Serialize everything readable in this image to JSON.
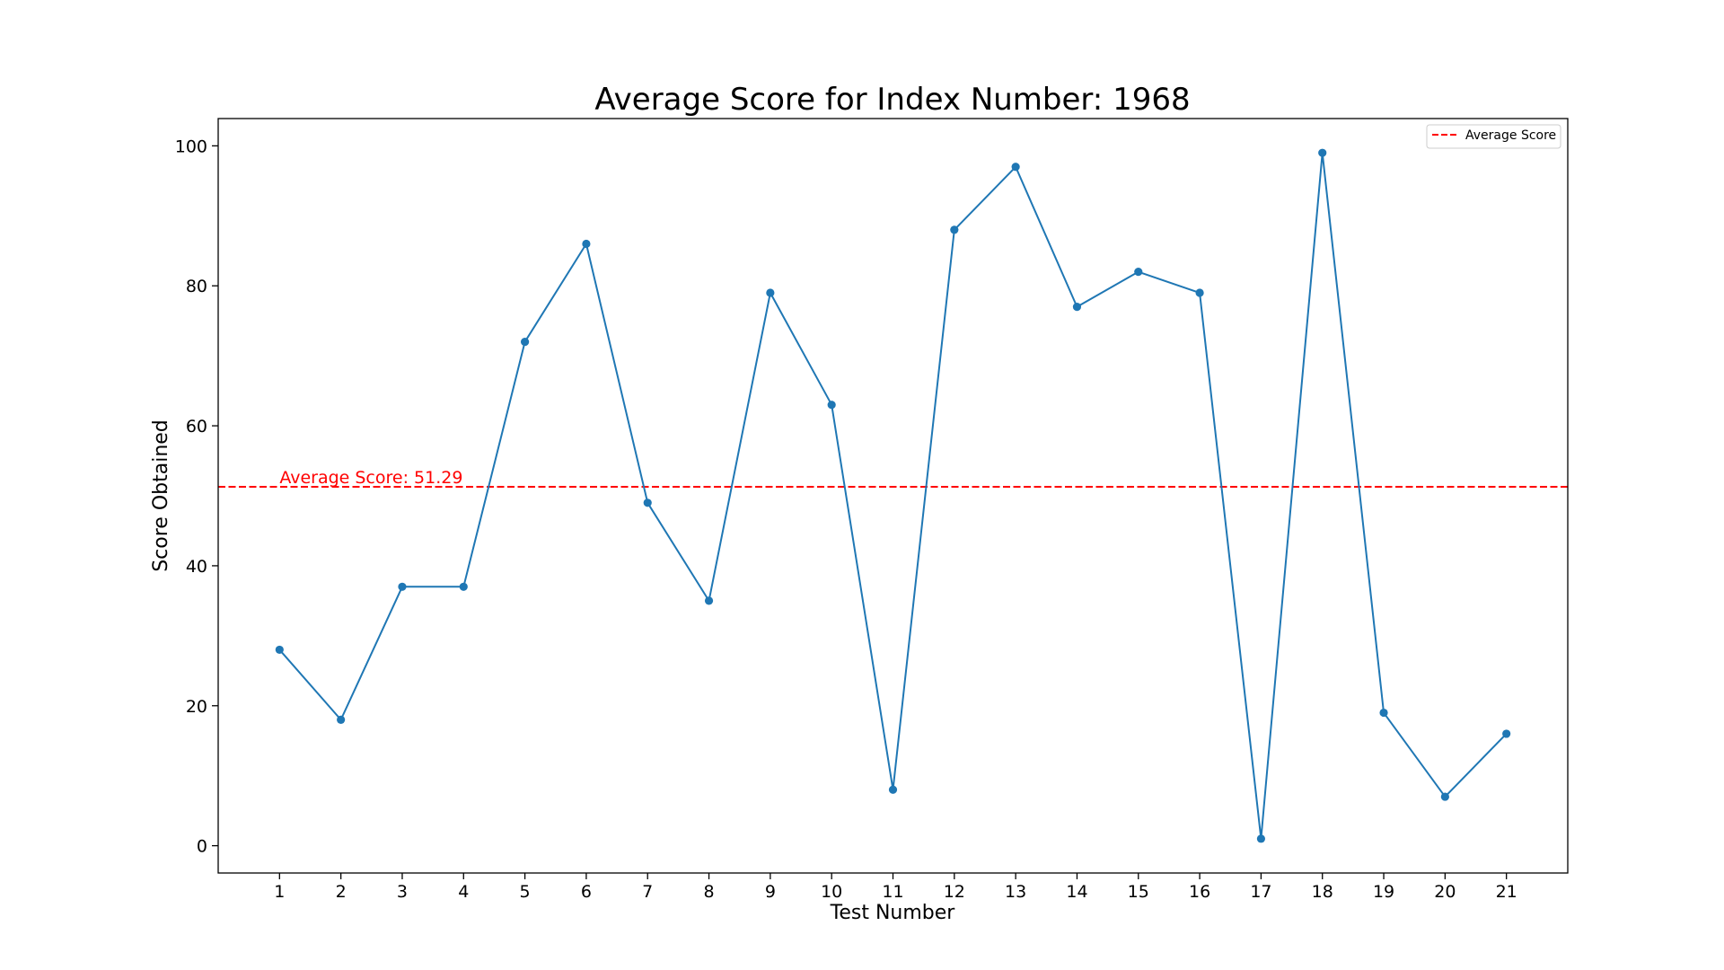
{
  "chart_data": {
    "type": "line",
    "title": "Average Score for Index Number: 1968",
    "xlabel": "Test Number",
    "ylabel": "Score Obtained",
    "x": [
      1,
      2,
      3,
      4,
      5,
      6,
      7,
      8,
      9,
      10,
      11,
      12,
      13,
      14,
      15,
      16,
      17,
      18,
      19,
      20,
      21
    ],
    "xticks": [
      1,
      2,
      3,
      4,
      5,
      6,
      7,
      8,
      9,
      10,
      11,
      12,
      13,
      14,
      15,
      16,
      17,
      18,
      19,
      20,
      21
    ],
    "yticks": [
      0,
      20,
      40,
      60,
      80,
      100
    ],
    "xlim": [
      0,
      22
    ],
    "ylim": [
      -3.9,
      103.9
    ],
    "grid": false,
    "series": [
      {
        "values": [
          28,
          18,
          37,
          37,
          72,
          86,
          49,
          35,
          79,
          63,
          8,
          88,
          97,
          77,
          82,
          79,
          1,
          99,
          19,
          7,
          16
        ],
        "color": "#1f77b4",
        "marker": "circle"
      }
    ],
    "average_line": {
      "value": 51.29,
      "color": "#ff0000",
      "style": "dashed",
      "annotation": "Average Score: 51.29",
      "legend_label": "Average Score"
    },
    "legend_position": "top-right"
  }
}
